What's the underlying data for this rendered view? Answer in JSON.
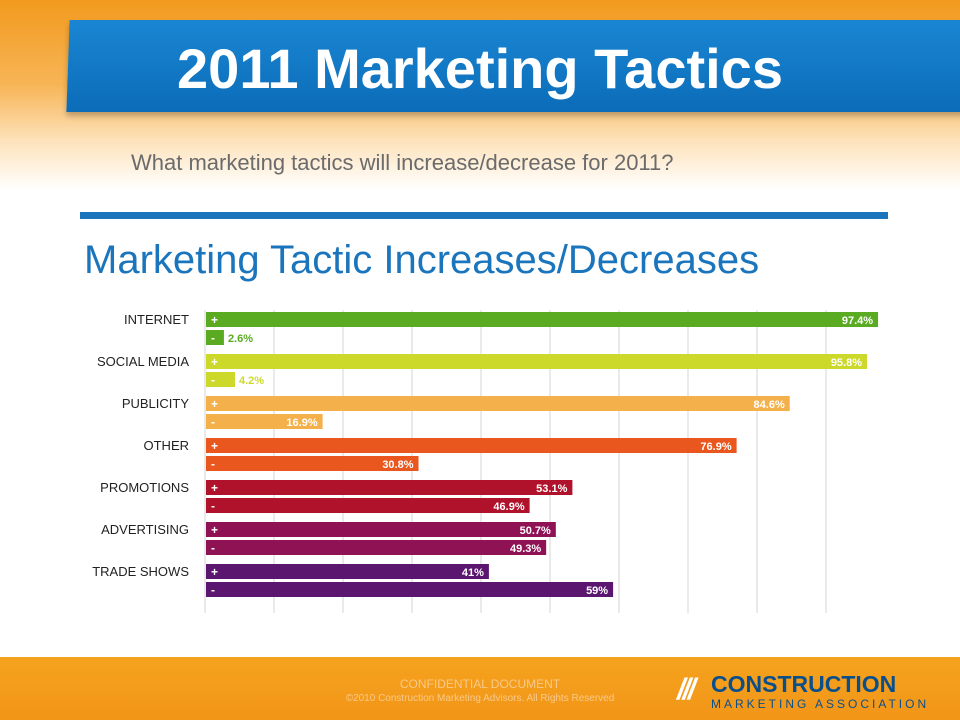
{
  "header": {
    "title": "2011 Marketing Tactics"
  },
  "question": "What marketing tactics will increase/decrease for  2011?",
  "chart_data": {
    "type": "bar",
    "title": "Marketing Tactic Increases/Decreases",
    "orientation": "horizontal",
    "xlim": [
      0,
      100
    ],
    "grid": true,
    "categories": [
      "INTERNET",
      "SOCIAL MEDIA",
      "PUBLICITY",
      "OTHER",
      "PROMOTIONS",
      "ADVERTISING",
      "TRADE SHOWS"
    ],
    "series": [
      {
        "name": "+",
        "values": [
          97.4,
          95.8,
          84.6,
          76.9,
          53.1,
          50.7,
          41
        ]
      },
      {
        "name": "-",
        "values": [
          2.6,
          4.2,
          16.9,
          30.8,
          46.9,
          49.3,
          59
        ]
      }
    ],
    "value_labels": {
      "increase": [
        "97.4%",
        "95.8%",
        "84.6%",
        "76.9%",
        "53.1%",
        "50.7%",
        "41%"
      ],
      "decrease": [
        "2.6%",
        "4.2%",
        "16.9%",
        "30.8%",
        "46.9%",
        "49.3%",
        "59%"
      ]
    },
    "colors": {
      "increase": [
        "#5aab22",
        "#ccd92b",
        "#f4b04a",
        "#e9571f",
        "#b0112b",
        "#8e1254",
        "#5b1670"
      ],
      "decrease": [
        "#5aab22",
        "#ccd92b",
        "#f4b04a",
        "#e9571f",
        "#b0112b",
        "#8e1254",
        "#5b1670"
      ]
    }
  },
  "footer": {
    "confidential": "CONFIDENTIAL DOCUMENT",
    "copyright": "©2010 Construction Marketing Advisors. All Rights Reserved",
    "logo_slashes": "///",
    "logo_main": "CONSTRUCTION",
    "logo_sub": "MARKETING ASSOCIATION"
  }
}
